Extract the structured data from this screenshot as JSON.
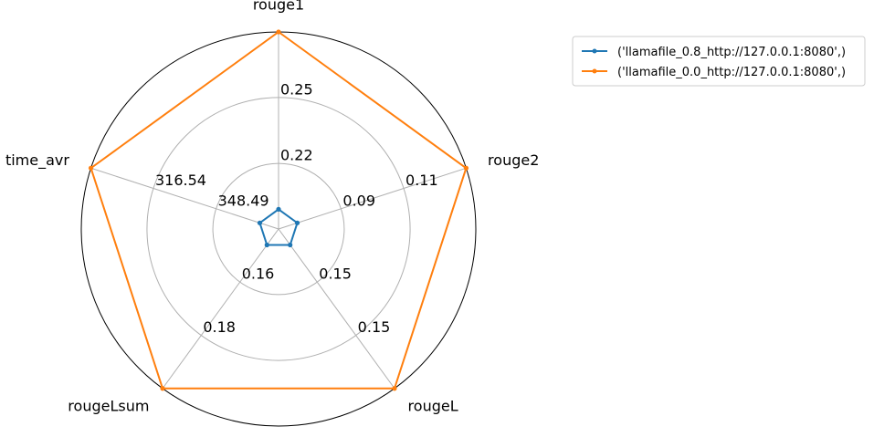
{
  "chart_data": {
    "type": "radar",
    "axes": [
      "rouge1",
      "rouge2",
      "rougeL",
      "rougeLsum",
      "time_avr"
    ],
    "tick_labels": {
      "rouge1": [
        "0.22",
        "0.25"
      ],
      "rouge2": [
        "0.09",
        "0.11"
      ],
      "rougeL": [
        "0.15",
        "0.15"
      ],
      "rougeLsum": [
        "0.16",
        "0.18"
      ],
      "time_avr": [
        "348.49",
        "316.54"
      ]
    },
    "rlim": [
      0,
      1
    ],
    "grid": true,
    "legend_position": "top-right, outside plot",
    "series": [
      {
        "name": "('llamafile_0.8_http://127.0.0.1:8080',)",
        "color": "#1f77b4",
        "values": {
          "rouge1": 0.0,
          "rouge2": 0.0,
          "rougeL": 0.0,
          "rougeLsum": 0.0,
          "time_avr": 0.0
        }
      },
      {
        "name": "('llamafile_0.0_http://127.0.0.1:8080',)",
        "color": "#ff7f0e",
        "values": {
          "rouge1": 1.0,
          "rouge2": 1.0,
          "rougeL": 1.0,
          "rougeLsum": 1.0,
          "time_avr": 1.0
        }
      }
    ]
  }
}
